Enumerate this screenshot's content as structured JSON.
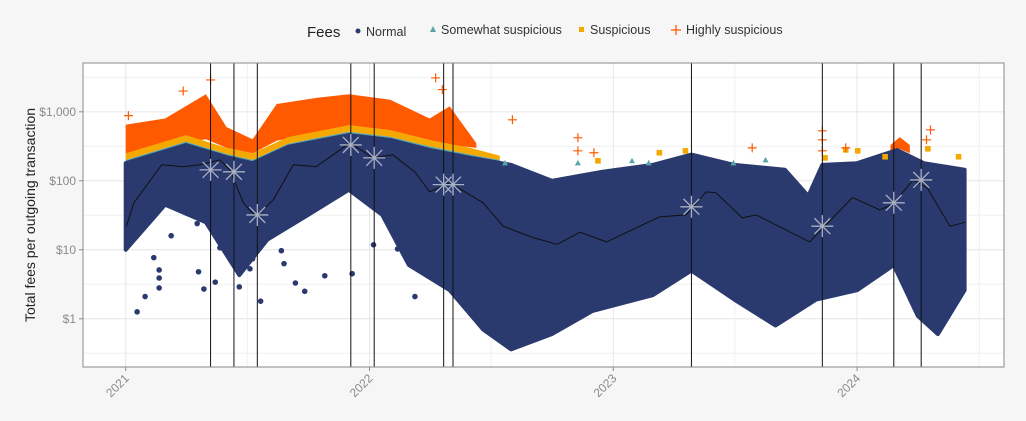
{
  "chart_data": {
    "type": "scatter",
    "title": "",
    "xlabel": "",
    "ylabel": "Total fees per outgoing transaction",
    "y_scale": "log",
    "xlim": [
      "2020-10-29",
      "2024-08-08"
    ],
    "ylim": [
      0.2,
      5100
    ],
    "grid": true,
    "x_ticks": [
      {
        "date": "2021-01-01",
        "label": "2021"
      },
      {
        "date": "2022-01-01",
        "label": "2022"
      },
      {
        "date": "2023-01-01",
        "label": "2023"
      },
      {
        "date": "2024-01-01",
        "label": "2024"
      }
    ],
    "y_ticks": [
      {
        "value": 1,
        "label": "$1"
      },
      {
        "value": 10,
        "label": "$10"
      },
      {
        "value": 100,
        "label": "$100"
      },
      {
        "value": 1000,
        "label": "$1,000"
      }
    ],
    "legend": {
      "title": "Fees",
      "placement": "top",
      "entries": [
        {
          "label": "Normal",
          "shape": "circle",
          "color": "#2b3a6e"
        },
        {
          "label": "Somewhat suspicious",
          "shape": "triangle",
          "color": "#5aa4a8"
        },
        {
          "label": "Suspicious",
          "shape": "square",
          "color": "#f5a800"
        },
        {
          "label": "Highly suspicious",
          "shape": "cross",
          "color": "#ff5a00"
        }
      ]
    },
    "normal_cloud": {
      "upper": [
        [
          "2021-01-01",
          180
        ],
        [
          "2021-04-01",
          330
        ],
        [
          "2021-06-01",
          220
        ],
        [
          "2021-07-10",
          180
        ],
        [
          "2021-09-01",
          310
        ],
        [
          "2021-12-01",
          460
        ],
        [
          "2022-02-01",
          390
        ],
        [
          "2022-04-01",
          280
        ],
        [
          "2022-06-01",
          215
        ],
        [
          "2022-08-01",
          170
        ],
        [
          "2022-10-01",
          100
        ],
        [
          "2022-12-15",
          135
        ],
        [
          "2023-03-01",
          170
        ],
        [
          "2023-04-28",
          240
        ],
        [
          "2023-07-01",
          170
        ],
        [
          "2023-09-15",
          145
        ],
        [
          "2023-10-20",
          60
        ],
        [
          "2023-11-10",
          170
        ],
        [
          "2024-01-01",
          180
        ],
        [
          "2024-03-01",
          280
        ],
        [
          "2024-04-10",
          180
        ],
        [
          "2024-06-10",
          145
        ]
      ],
      "lower": [
        [
          "2021-01-01",
          10
        ],
        [
          "2021-03-01",
          45
        ],
        [
          "2021-05-01",
          25
        ],
        [
          "2021-06-20",
          4.3
        ],
        [
          "2021-08-01",
          14
        ],
        [
          "2021-10-01",
          32
        ],
        [
          "2021-12-01",
          74
        ],
        [
          "2022-01-20",
          32
        ],
        [
          "2022-03-01",
          6
        ],
        [
          "2022-05-01",
          2.6
        ],
        [
          "2022-06-20",
          0.7
        ],
        [
          "2022-08-01",
          0.36
        ],
        [
          "2022-10-01",
          0.6
        ],
        [
          "2022-12-01",
          1.3
        ],
        [
          "2023-03-01",
          2.2
        ],
        [
          "2023-04-28",
          5
        ],
        [
          "2023-07-01",
          1.9
        ],
        [
          "2023-09-01",
          0.8
        ],
        [
          "2023-11-01",
          1.9
        ],
        [
          "2024-01-01",
          2.6
        ],
        [
          "2024-02-25",
          6
        ],
        [
          "2024-04-01",
          1.1
        ],
        [
          "2024-05-01",
          0.6
        ],
        [
          "2024-06-10",
          2.6
        ]
      ]
    },
    "somewhat_suspicious_band": [
      [
        "2021-01-01",
        180,
        200
      ],
      [
        "2021-04-01",
        330,
        370
      ],
      [
        "2021-06-01",
        220,
        245
      ],
      [
        "2021-07-10",
        180,
        200
      ],
      [
        "2021-09-01",
        310,
        345
      ],
      [
        "2021-12-01",
        460,
        515
      ],
      [
        "2022-02-01",
        390,
        435
      ],
      [
        "2022-04-01",
        280,
        315
      ],
      [
        "2022-06-01",
        215,
        240
      ],
      [
        "2022-07-15",
        180,
        200
      ]
    ],
    "suspicious_band": [
      [
        "2021-01-01",
        200,
        250
      ],
      [
        "2021-04-01",
        370,
        460
      ],
      [
        "2021-06-01",
        245,
        300
      ],
      [
        "2021-07-10",
        200,
        250
      ],
      [
        "2021-09-01",
        345,
        430
      ],
      [
        "2021-12-01",
        515,
        640
      ],
      [
        "2022-02-01",
        435,
        540
      ],
      [
        "2022-04-01",
        315,
        390
      ],
      [
        "2022-06-01",
        240,
        300
      ],
      [
        "2022-07-15",
        200,
        230
      ]
    ],
    "highly_suspicious_band": [
      [
        "2021-01-01",
        250,
        650
      ],
      [
        "2021-03-01",
        330,
        800
      ],
      [
        "2021-05-01",
        400,
        1800
      ],
      [
        "2021-06-01",
        300,
        600
      ],
      [
        "2021-07-10",
        250,
        400
      ],
      [
        "2021-08-15",
        380,
        1300
      ],
      [
        "2021-10-15",
        500,
        1600
      ],
      [
        "2021-12-01",
        640,
        1800
      ],
      [
        "2022-02-01",
        540,
        1500
      ],
      [
        "2022-04-01",
        390,
        800
      ],
      [
        "2022-05-01",
        330,
        1200
      ],
      [
        "2022-06-10",
        300,
        350
      ]
    ],
    "highly_suspicious_band_2024": [
      [
        "2024-02-20",
        250,
        330
      ],
      [
        "2024-03-05",
        290,
        430
      ],
      [
        "2024-03-20",
        250,
        330
      ]
    ],
    "normal_outliers": [
      [
        "2021-01-18",
        1.26
      ],
      [
        "2021-01-30",
        2.1
      ],
      [
        "2021-02-12",
        7.7
      ],
      [
        "2021-02-20",
        5.1
      ],
      [
        "2021-02-20",
        3.9
      ],
      [
        "2021-02-20",
        2.8
      ],
      [
        "2021-03-10",
        16
      ],
      [
        "2021-04-18",
        24
      ],
      [
        "2021-04-20",
        4.8
      ],
      [
        "2021-04-28",
        2.7
      ],
      [
        "2021-05-15",
        3.4
      ],
      [
        "2021-05-22",
        10.7
      ],
      [
        "2021-06-08",
        12.6
      ],
      [
        "2021-06-08",
        35
      ],
      [
        "2021-07-10",
        12
      ],
      [
        "2021-07-10",
        9
      ],
      [
        "2021-07-10",
        7.4
      ],
      [
        "2021-07-06",
        5.3
      ],
      [
        "2021-08-22",
        9.7
      ],
      [
        "2021-08-26",
        6.3
      ],
      [
        "2021-09-26",
        2.5
      ],
      [
        "2021-06-20",
        2.9
      ],
      [
        "2021-07-22",
        1.8
      ],
      [
        "2021-09-12",
        3.3
      ],
      [
        "2021-10-26",
        4.2
      ],
      [
        "2021-12-06",
        4.5
      ],
      [
        "2022-01-07",
        11.8
      ],
      [
        "2022-02-12",
        10.3
      ],
      [
        "2022-04-25",
        30
      ],
      [
        "2022-03-10",
        2.1
      ]
    ],
    "somewhat_suspicious_points": [
      [
        "2022-07-23",
        182
      ],
      [
        "2022-11-09",
        182
      ],
      [
        "2023-01-29",
        195
      ],
      [
        "2023-02-23",
        182
      ],
      [
        "2023-06-30",
        182
      ],
      [
        "2023-08-17",
        201
      ]
    ],
    "suspicious_points": [
      [
        "2022-12-09",
        195
      ],
      [
        "2023-03-11",
        255
      ],
      [
        "2023-04-19",
        272
      ],
      [
        "2023-11-14",
        215
      ],
      [
        "2023-12-15",
        281
      ],
      [
        "2024-01-02",
        272
      ],
      [
        "2024-02-12",
        223
      ],
      [
        "2024-04-16",
        291
      ],
      [
        "2024-06-01",
        223
      ]
    ],
    "highly_suspicious_points": [
      [
        "2021-01-05",
        880
      ],
      [
        "2021-03-28",
        2000
      ],
      [
        "2021-05-08",
        2900
      ],
      [
        "2022-04-10",
        3100
      ],
      [
        "2022-04-20",
        2100
      ],
      [
        "2022-08-03",
        766
      ],
      [
        "2022-11-09",
        420
      ],
      [
        "2022-11-09",
        272
      ],
      [
        "2022-12-03",
        255
      ],
      [
        "2023-07-28",
        300
      ],
      [
        "2023-11-10",
        530
      ],
      [
        "2023-11-10",
        393
      ],
      [
        "2023-11-10",
        272
      ],
      [
        "2023-12-15",
        300
      ],
      [
        "2024-04-20",
        548
      ],
      [
        "2024-04-14",
        393
      ]
    ],
    "median_line": [
      [
        "2021-01-02",
        22
      ],
      [
        "2021-01-13",
        48
      ],
      [
        "2021-02-24",
        171
      ],
      [
        "2021-03-28",
        160
      ],
      [
        "2021-04-22",
        171
      ],
      [
        "2021-05-22",
        201
      ],
      [
        "2021-06-06",
        144
      ],
      [
        "2021-06-26",
        48
      ],
      [
        "2021-07-15",
        30
      ],
      [
        "2021-08-10",
        53
      ],
      [
        "2021-09-09",
        171
      ],
      [
        "2021-10-13",
        160
      ],
      [
        "2021-11-03",
        223
      ],
      [
        "2021-12-03",
        356
      ],
      [
        "2022-01-06",
        215
      ],
      [
        "2022-02-05",
        238
      ],
      [
        "2022-03-11",
        131
      ],
      [
        "2022-04-01",
        69
      ],
      [
        "2022-05-01",
        94
      ],
      [
        "2022-06-20",
        48
      ],
      [
        "2022-07-20",
        22
      ],
      [
        "2022-09-03",
        15
      ],
      [
        "2022-10-09",
        12
      ],
      [
        "2022-11-12",
        18
      ],
      [
        "2022-12-22",
        13
      ],
      [
        "2023-03-11",
        30
      ],
      [
        "2023-04-20",
        32
      ],
      [
        "2023-05-20",
        69
      ],
      [
        "2023-06-04",
        67
      ],
      [
        "2023-07-13",
        29
      ],
      [
        "2023-08-03",
        32
      ],
      [
        "2023-10-22",
        13
      ],
      [
        "2023-12-25",
        57
      ],
      [
        "2024-02-04",
        38
      ],
      [
        "2024-02-23",
        45
      ],
      [
        "2024-03-25",
        103
      ],
      [
        "2024-04-15",
        79
      ],
      [
        "2024-05-19",
        22
      ],
      [
        "2024-06-11",
        25
      ]
    ],
    "events": [
      {
        "date": "2021-05-08",
        "value": 144
      },
      {
        "date": "2021-06-12",
        "value": 135
      },
      {
        "date": "2021-07-17",
        "value": 32
      },
      {
        "date": "2021-12-04",
        "value": 331
      },
      {
        "date": "2022-01-08",
        "value": 215
      },
      {
        "date": "2022-04-22",
        "value": 88
      },
      {
        "date": "2022-05-06",
        "value": 88
      },
      {
        "date": "2023-04-28",
        "value": 42
      },
      {
        "date": "2023-11-10",
        "value": 22
      },
      {
        "date": "2024-02-25",
        "value": 48
      },
      {
        "date": "2024-04-06",
        "value": 103
      }
    ],
    "colors": {
      "normal": "#2b3a6e",
      "somewhat": "#5aa4a8",
      "suspicious": "#f5a800",
      "highly": "#ff5a00",
      "median": "#111111",
      "event_line": "#111111",
      "event_marker": "#a9b0c4"
    }
  }
}
